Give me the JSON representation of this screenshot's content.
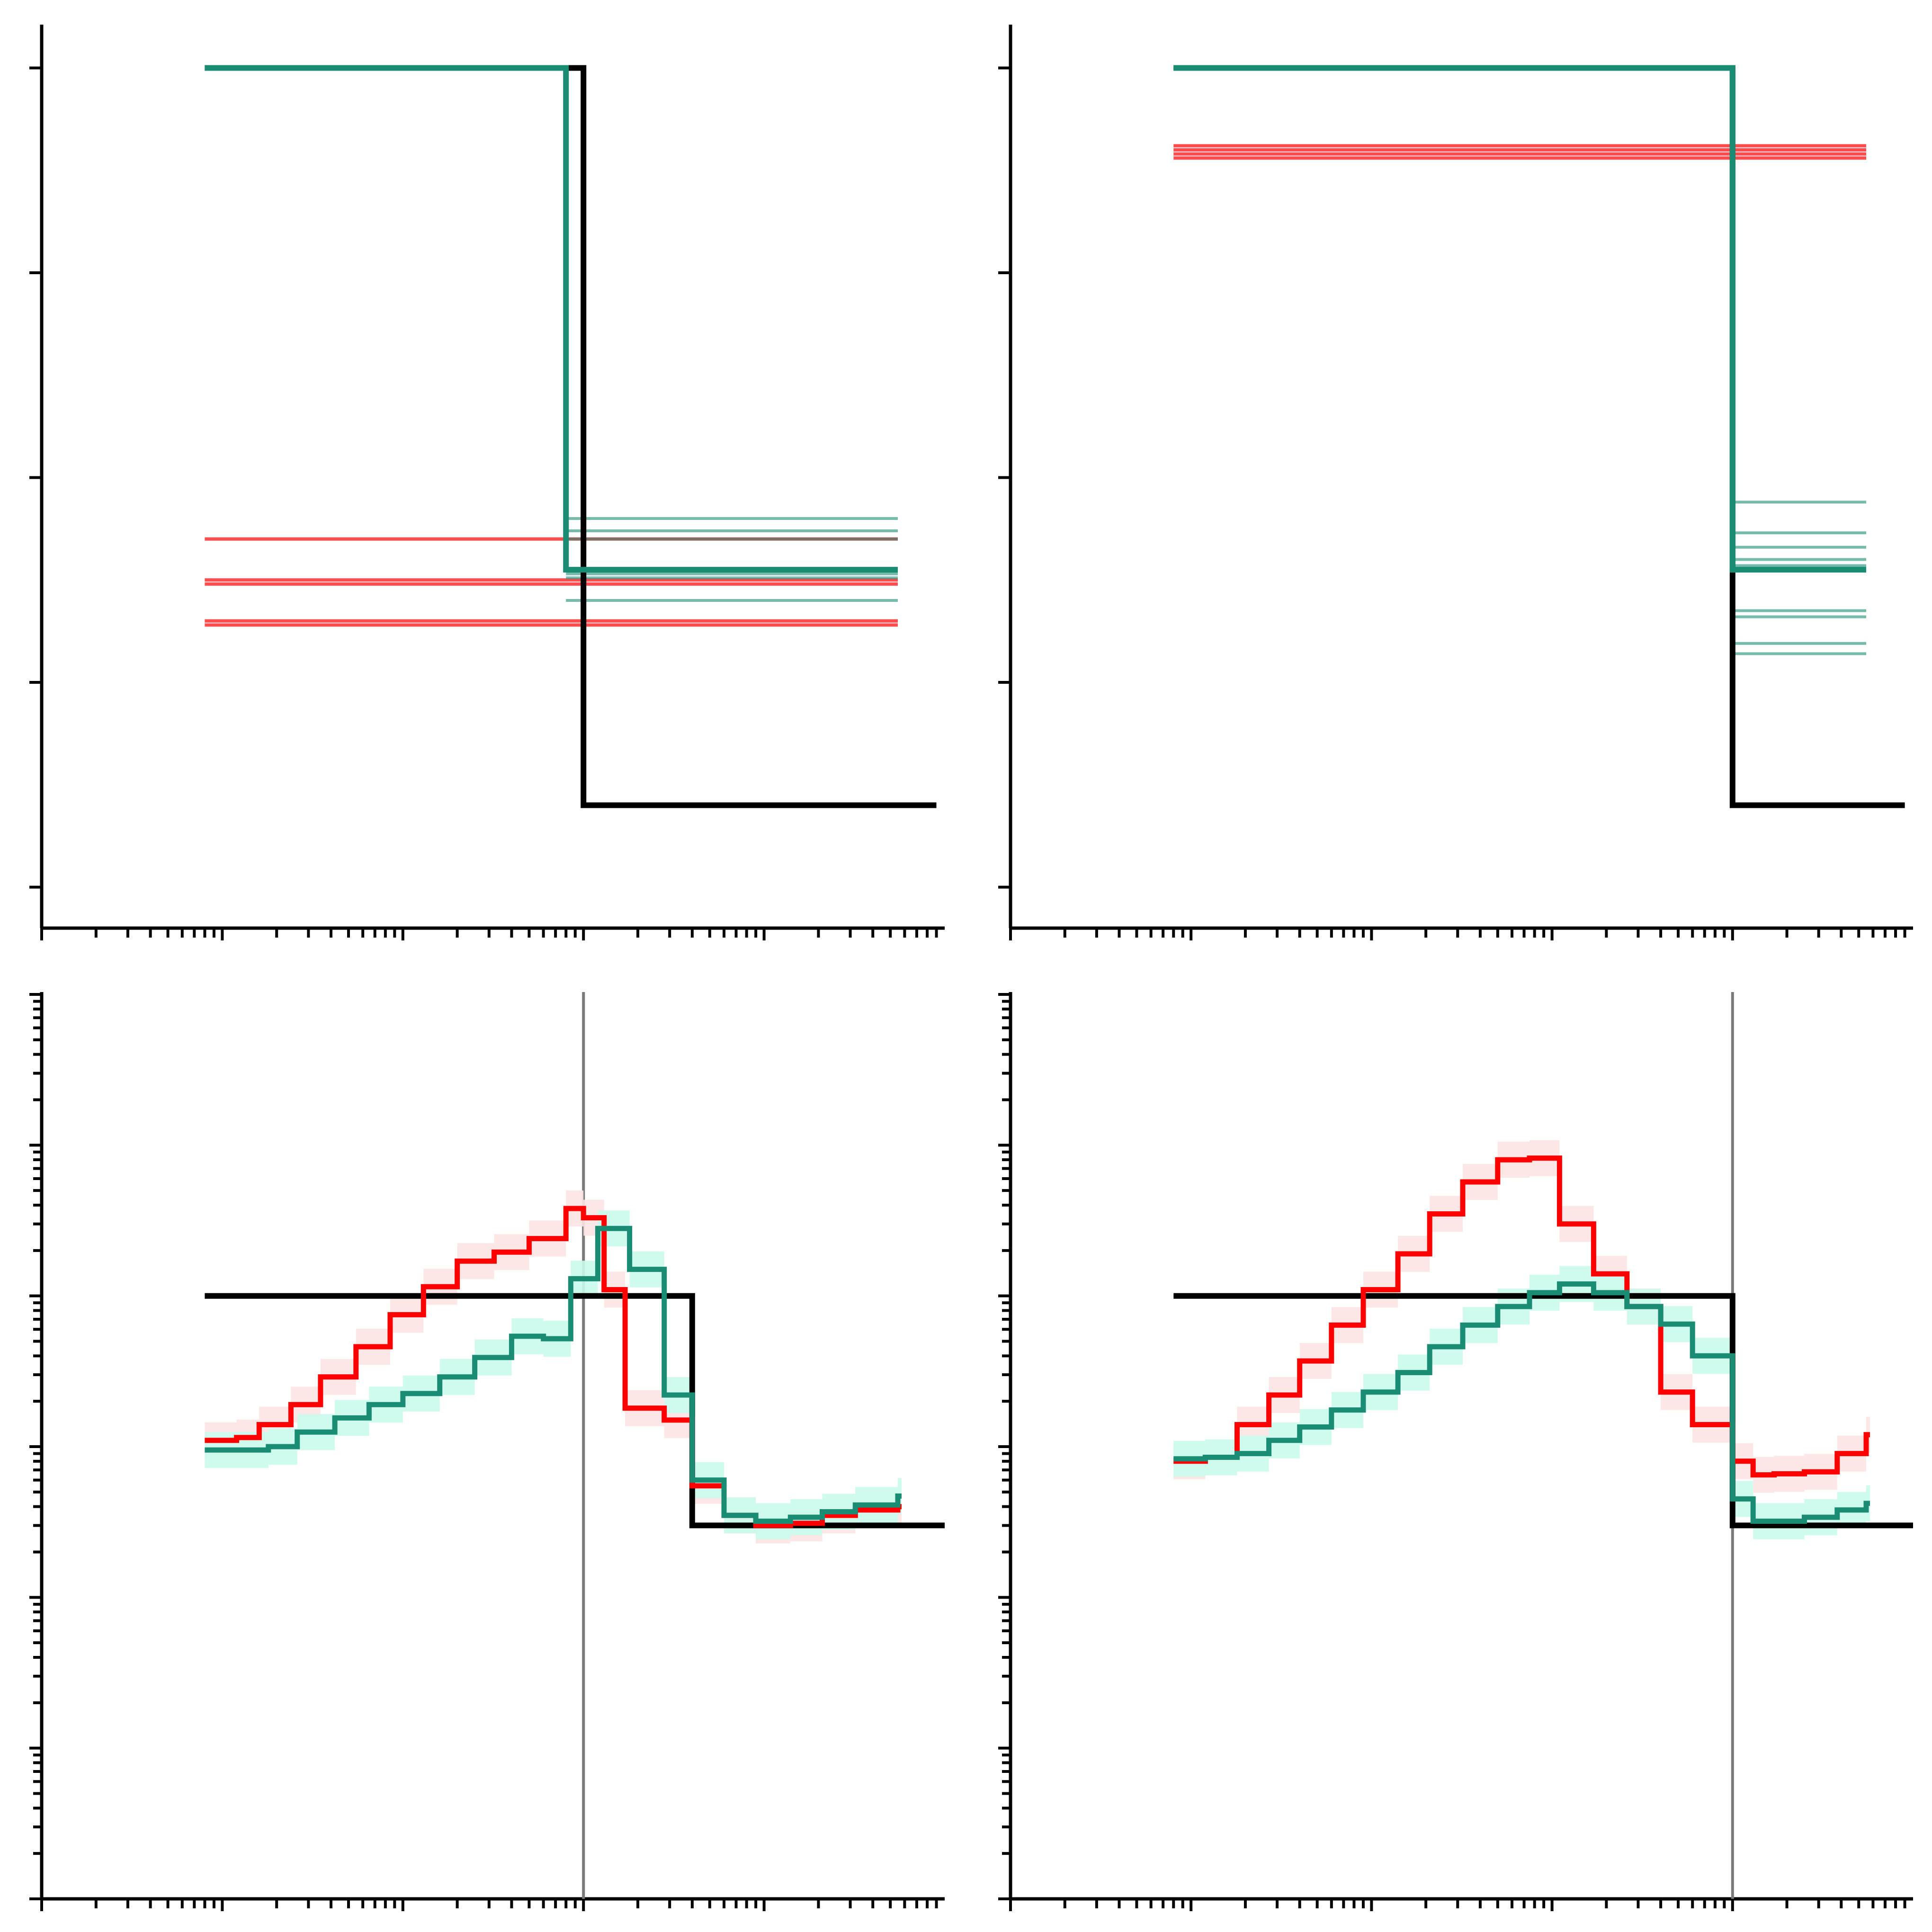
{
  "colors": {
    "axis": "#000000",
    "truth": "#000000",
    "red": "#ff0000",
    "red_band": "#fde3e3",
    "teal": "#1a8c74",
    "teal_band": "#c9fbec",
    "vline": "#7a7a7a"
  },
  "chart_data": [
    {
      "panel": "top-left",
      "type": "line",
      "title": "",
      "xlabel": "",
      "ylabel": "",
      "x_scale": "log",
      "y_scale": "linear",
      "xlim": [
        0.0001,
        10.0
      ],
      "ylim": [
        -0.2,
        4.2
      ],
      "grid": false,
      "tick_labels": [],
      "series": [
        {
          "role": "truth",
          "color": "#000000",
          "points": [
            [
              0.0008,
              4
            ],
            [
              0.1,
              4
            ],
            [
              0.1,
              0.4
            ],
            [
              9,
              0.4
            ]
          ]
        },
        {
          "role": "teal-median",
          "color": "#1a8c74",
          "points": [
            [
              0.0008,
              4
            ],
            [
              0.08,
              4
            ],
            [
              0.08,
              1.55
            ],
            [
              5.5,
              1.55
            ]
          ]
        },
        {
          "role": "teal-sample",
          "color": "#1a8c74",
          "points": [
            [
              0.08,
              1.8
            ],
            [
              5.5,
              1.8
            ]
          ]
        },
        {
          "role": "teal-sample",
          "color": "#1a8c74",
          "points": [
            [
              0.08,
              1.74
            ],
            [
              5.5,
              1.74
            ]
          ]
        },
        {
          "role": "teal-sample",
          "color": "#1a8c74",
          "points": [
            [
              0.08,
              1.7
            ],
            [
              5.5,
              1.7
            ]
          ]
        },
        {
          "role": "teal-sample",
          "color": "#1a8c74",
          "points": [
            [
              0.08,
              1.53
            ],
            [
              5.5,
              1.53
            ]
          ]
        },
        {
          "role": "teal-sample",
          "color": "#1a8c74",
          "points": [
            [
              0.08,
              1.51
            ],
            [
              5.5,
              1.51
            ]
          ]
        },
        {
          "role": "teal-sample",
          "color": "#1a8c74",
          "points": [
            [
              0.08,
              1.4
            ],
            [
              5.5,
              1.4
            ]
          ]
        },
        {
          "role": "red-sample",
          "color": "#ff0000",
          "points": [
            [
              0.0008,
              1.7
            ],
            [
              5.5,
              1.7
            ]
          ]
        },
        {
          "role": "red-sample",
          "color": "#ff0000",
          "points": [
            [
              0.0008,
              1.5
            ],
            [
              5.5,
              1.5
            ]
          ]
        },
        {
          "role": "red-sample",
          "color": "#ff0000",
          "points": [
            [
              0.0008,
              1.48
            ],
            [
              5.5,
              1.48
            ]
          ]
        },
        {
          "role": "red-sample",
          "color": "#ff0000",
          "points": [
            [
              0.0008,
              1.3
            ],
            [
              5.5,
              1.3
            ]
          ]
        },
        {
          "role": "red-sample",
          "color": "#ff0000",
          "points": [
            [
              0.0008,
              1.28
            ],
            [
              5.5,
              1.28
            ]
          ]
        }
      ]
    },
    {
      "panel": "top-right",
      "type": "line",
      "title": "",
      "xlabel": "",
      "ylabel": "",
      "x_scale": "log",
      "y_scale": "linear",
      "xlim": [
        0.0001,
        10.0
      ],
      "ylim": [
        -0.2,
        4.2
      ],
      "grid": false,
      "tick_labels": [],
      "series": [
        {
          "role": "truth",
          "color": "#000000",
          "points": [
            [
              0.0008,
              4
            ],
            [
              1,
              4
            ],
            [
              1,
              0.4
            ],
            [
              9,
              0.4
            ]
          ]
        },
        {
          "role": "teal-median",
          "color": "#1a8c74",
          "points": [
            [
              0.0008,
              4
            ],
            [
              1,
              4
            ],
            [
              1,
              1.55
            ],
            [
              5.5,
              1.55
            ]
          ]
        },
        {
          "role": "teal-sample",
          "color": "#1a8c74",
          "points": [
            [
              1,
              1.88
            ],
            [
              5.5,
              1.88
            ]
          ]
        },
        {
          "role": "teal-sample",
          "color": "#1a8c74",
          "points": [
            [
              1,
              1.73
            ],
            [
              5.5,
              1.73
            ]
          ]
        },
        {
          "role": "teal-sample",
          "color": "#1a8c74",
          "points": [
            [
              1,
              1.66
            ],
            [
              5.5,
              1.66
            ]
          ]
        },
        {
          "role": "teal-sample",
          "color": "#1a8c74",
          "points": [
            [
              1,
              1.6
            ],
            [
              5.5,
              1.6
            ]
          ]
        },
        {
          "role": "teal-sample",
          "color": "#1a8c74",
          "points": [
            [
              1,
              1.57
            ],
            [
              5.5,
              1.57
            ]
          ]
        },
        {
          "role": "teal-sample",
          "color": "#1a8c74",
          "points": [
            [
              1,
              1.35
            ],
            [
              5.5,
              1.35
            ]
          ]
        },
        {
          "role": "teal-sample",
          "color": "#1a8c74",
          "points": [
            [
              1,
              1.32
            ],
            [
              5.5,
              1.32
            ]
          ]
        },
        {
          "role": "teal-sample",
          "color": "#1a8c74",
          "points": [
            [
              1,
              1.19
            ],
            [
              5.5,
              1.19
            ]
          ]
        },
        {
          "role": "teal-sample",
          "color": "#1a8c74",
          "points": [
            [
              1,
              1.14
            ],
            [
              5.5,
              1.14
            ]
          ]
        },
        {
          "role": "red-sample",
          "color": "#ff0000",
          "points": [
            [
              0.0008,
              3.62
            ],
            [
              5.5,
              3.62
            ]
          ]
        },
        {
          "role": "red-sample",
          "color": "#ff0000",
          "points": [
            [
              0.0008,
              3.6
            ],
            [
              5.5,
              3.6
            ]
          ]
        },
        {
          "role": "red-sample",
          "color": "#ff0000",
          "points": [
            [
              0.0008,
              3.58
            ],
            [
              5.5,
              3.58
            ]
          ]
        },
        {
          "role": "red-sample",
          "color": "#ff0000",
          "points": [
            [
              0.0008,
              3.56
            ],
            [
              5.5,
              3.56
            ]
          ]
        }
      ]
    },
    {
      "panel": "bottom-left",
      "type": "line",
      "title": "",
      "xlabel": "",
      "ylabel": "",
      "x_scale": "log",
      "y_scale": "log",
      "xlim": [
        0.0001,
        10.0
      ],
      "ylim": [
        0.001,
        1000.0
      ],
      "grid": false,
      "tick_labels": [],
      "vline_x": 0.1,
      "series": [
        {
          "role": "truth",
          "color": "#000000",
          "points": [
            [
              0.0008,
              10
            ],
            [
              0.4,
              10
            ],
            [
              0.4,
              0.3
            ],
            [
              10,
              0.3
            ]
          ]
        },
        {
          "role": "red",
          "color": "#ff0000",
          "x": [
            0.0008,
            0.0012,
            0.0016,
            0.0024,
            0.0035,
            0.0055,
            0.0085,
            0.013,
            0.02,
            0.032,
            0.05,
            0.08,
            0.1,
            0.13,
            0.17,
            0.28,
            0.4,
            0.6,
            0.9,
            1.4,
            2.1,
            3.2,
            5.5
          ],
          "y": [
            1.1,
            1.15,
            1.4,
            1.9,
            2.9,
            4.6,
            7.5,
            11.5,
            17,
            19.5,
            24,
            38,
            33,
            11,
            1.8,
            1.5,
            0.55,
            0.35,
            0.3,
            0.31,
            0.35,
            0.38,
            0.4
          ]
        },
        {
          "role": "teal",
          "color": "#1a8c74",
          "x": [
            0.0008,
            0.0012,
            0.0018,
            0.0026,
            0.0042,
            0.0065,
            0.01,
            0.016,
            0.025,
            0.04,
            0.06,
            0.085,
            0.12,
            0.18,
            0.28,
            0.4,
            0.6,
            0.9,
            1.4,
            2.1,
            3.2,
            5.5
          ],
          "y": [
            0.95,
            0.95,
            1.0,
            1.25,
            1.55,
            1.9,
            2.25,
            2.9,
            3.9,
            5.4,
            5.2,
            13,
            28,
            15,
            2.2,
            0.6,
            0.35,
            0.32,
            0.34,
            0.37,
            0.41,
            0.47
          ]
        }
      ]
    },
    {
      "panel": "bottom-right",
      "type": "line",
      "title": "",
      "xlabel": "",
      "ylabel": "",
      "x_scale": "log",
      "y_scale": "log",
      "xlim": [
        0.0001,
        10.0
      ],
      "ylim": [
        0.001,
        1000.0
      ],
      "grid": false,
      "tick_labels": [],
      "vline_x": 1,
      "series": [
        {
          "role": "truth",
          "color": "#000000",
          "points": [
            [
              0.0008,
              10
            ],
            [
              1,
              10
            ],
            [
              1,
              0.3
            ],
            [
              10,
              0.3
            ]
          ]
        },
        {
          "role": "red",
          "color": "#ff0000",
          "x": [
            0.0008,
            0.0012,
            0.0018,
            0.0027,
            0.004,
            0.006,
            0.009,
            0.014,
            0.021,
            0.032,
            0.05,
            0.075,
            0.11,
            0.17,
            0.26,
            0.4,
            0.6,
            1,
            1.3,
            1.7,
            2.5,
            3.8,
            5.5
          ],
          "y": [
            0.8,
            0.85,
            1.4,
            2.2,
            3.7,
            6.4,
            11,
            19,
            35,
            57,
            80,
            82,
            30,
            14,
            8.5,
            2.3,
            1.4,
            0.8,
            0.65,
            0.66,
            0.68,
            0.9,
            1.2
          ]
        },
        {
          "role": "teal",
          "color": "#1a8c74",
          "x": [
            0.0008,
            0.0012,
            0.0018,
            0.0027,
            0.004,
            0.006,
            0.009,
            0.014,
            0.021,
            0.032,
            0.05,
            0.075,
            0.11,
            0.17,
            0.26,
            0.4,
            0.6,
            1,
            1.3,
            1.7,
            2.5,
            3.8,
            5.5
          ],
          "y": [
            0.83,
            0.85,
            0.9,
            1.1,
            1.35,
            1.75,
            2.3,
            3.1,
            4.6,
            6.4,
            8.5,
            10.5,
            12,
            10.5,
            8.5,
            6.5,
            4.0,
            0.45,
            0.32,
            0.32,
            0.34,
            0.38,
            0.42
          ]
        }
      ]
    }
  ]
}
